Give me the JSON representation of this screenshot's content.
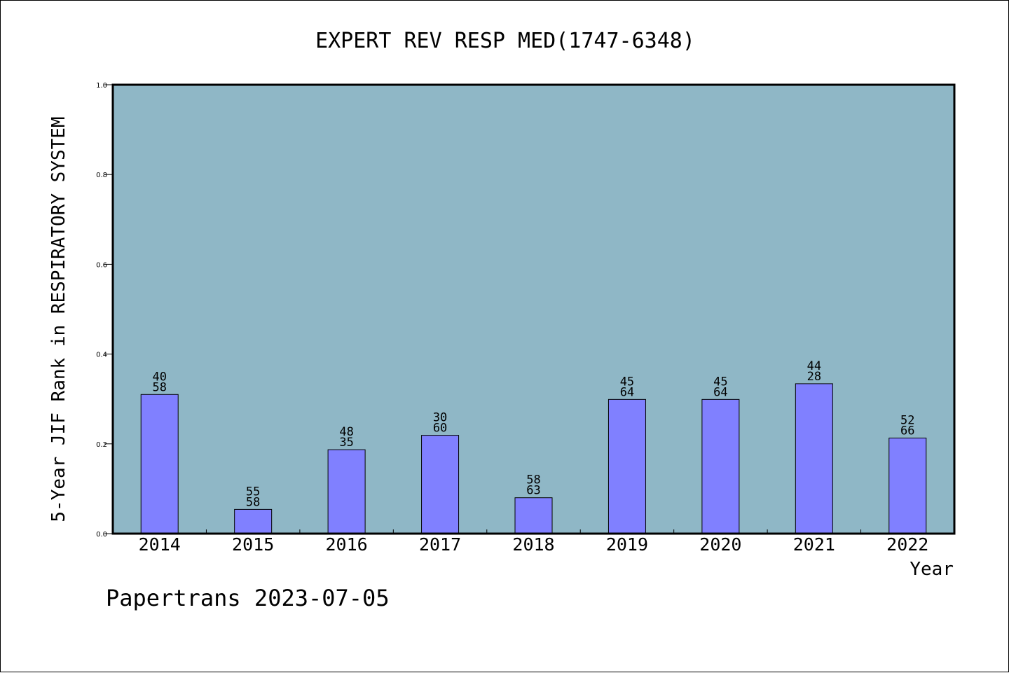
{
  "chart_data": {
    "type": "bar",
    "title": "EXPERT REV RESP MED(1747-6348)",
    "xlabel": "Year",
    "ylabel": "5-Year JIF Rank in RESPIRATORY SYSTEM",
    "ylim": [
      0.0,
      1.0
    ],
    "yticks": [
      "0.0",
      "0.2",
      "0.4",
      "0.6",
      "0.8",
      "1.0"
    ],
    "grid": false,
    "categories": [
      "2014",
      "2015",
      "2016",
      "2017",
      "2018",
      "2019",
      "2020",
      "2021",
      "2022"
    ],
    "values": [
      0.31,
      0.054,
      0.187,
      0.219,
      0.08,
      0.299,
      0.299,
      0.334,
      0.213
    ],
    "labels_top": [
      "40",
      "55",
      "48",
      "30",
      "58",
      "45",
      "45",
      "44",
      "52"
    ],
    "labels_bottom": [
      "58",
      "58",
      "35",
      "60",
      "63",
      "64",
      "64",
      "28",
      "66"
    ],
    "colors": {
      "plot_background": "#8fb7c6",
      "bar_fill": "#8080ff",
      "bar_stroke": "#000000"
    }
  },
  "footer": {
    "watermark": "Papertrans 2023-07-05"
  }
}
